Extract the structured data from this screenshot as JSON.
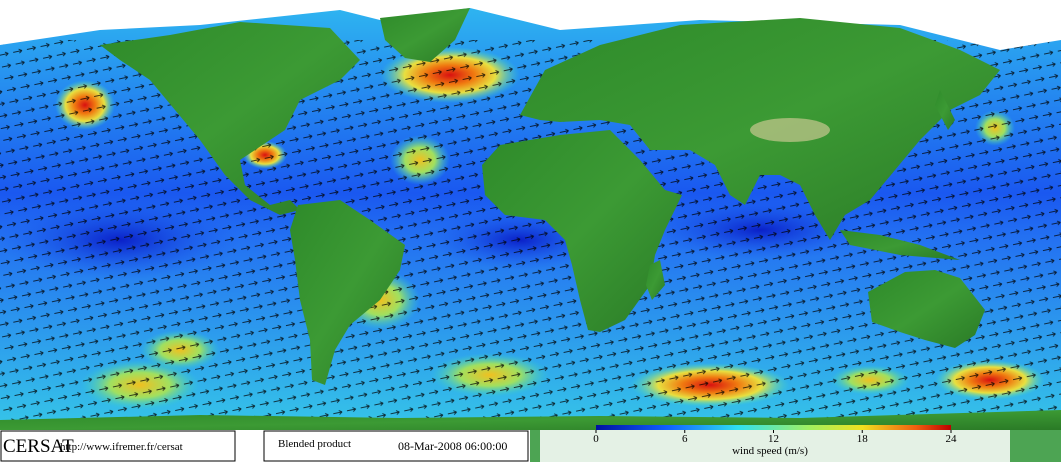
{
  "footer": {
    "logo": "CERSAT",
    "url": "http://www.ifremer.fr/cersat",
    "product": "Blended product",
    "datetime": "08-Mar-2008 06:00:00"
  },
  "colorbar": {
    "label": "wind speed (m/s)",
    "range": [
      0,
      24
    ],
    "ticks": [
      0,
      6,
      12,
      18,
      24
    ]
  }
}
